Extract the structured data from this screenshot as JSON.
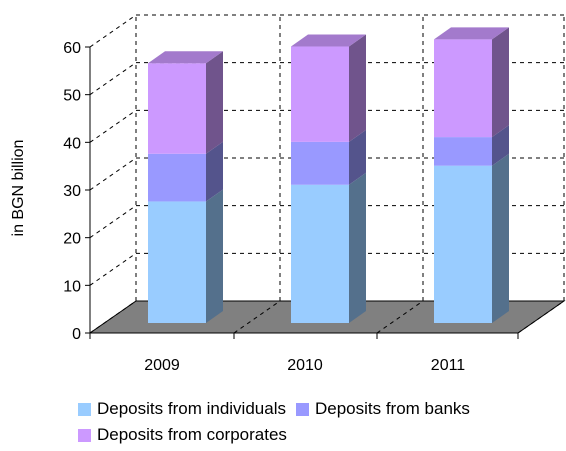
{
  "chart_data": {
    "type": "bar",
    "stacked": true,
    "three_d": true,
    "title": "",
    "ylabel": "in BGN billion",
    "xlabel": "",
    "ylim": [
      0,
      60
    ],
    "yticks": [
      0,
      10,
      20,
      30,
      40,
      50,
      60
    ],
    "categories": [
      "2009",
      "2010",
      "2011"
    ],
    "series": [
      {
        "name": "Deposits from individuals",
        "values": [
          25.5,
          29,
          33
        ],
        "color": "#99ccff"
      },
      {
        "name": "Deposits from banks",
        "values": [
          10,
          9,
          6
        ],
        "color": "#9999ff"
      },
      {
        "name": "Deposits from corporates",
        "values": [
          19,
          20,
          20.5
        ],
        "color": "#cc99ff"
      }
    ],
    "grid": "dashed",
    "legend_position": "bottom"
  }
}
